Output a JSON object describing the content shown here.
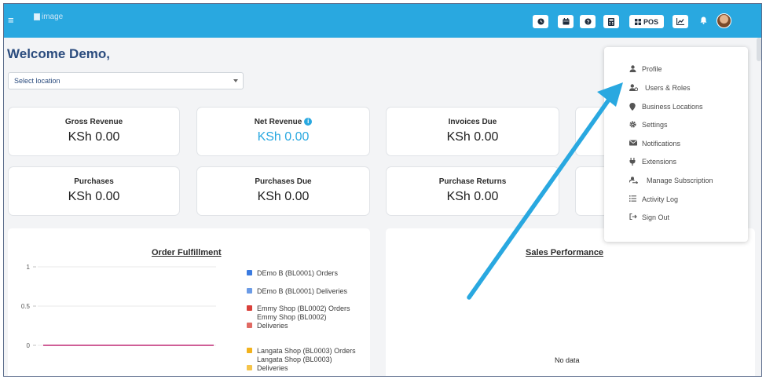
{
  "header": {
    "logo_alt": "image",
    "pos_label": "POS"
  },
  "welcome": "Welcome Demo,",
  "location_select": {
    "placeholder": "Select location"
  },
  "cards": [
    {
      "label": "Gross Revenue",
      "value": "KSh 0.00"
    },
    {
      "label": "Net Revenue",
      "value": "KSh 0.00",
      "accent": "#29a8e0"
    },
    {
      "label": "Invoices Due",
      "value": "KSh 0.00"
    },
    {
      "label": "Purchases",
      "value": "KSh 0.00"
    },
    {
      "label": "Purchases Due",
      "value": "KSh 0.00"
    },
    {
      "label": "Purchase Returns",
      "value": "KSh 0.00"
    }
  ],
  "order_fulfillment": {
    "title": "Order Fulfillment",
    "legend": [
      {
        "label": "DEmo B (BL0001) Orders",
        "color": "#3b7be0"
      },
      {
        "label": "DEmo B (BL0001) Deliveries",
        "color": "#6b9be6"
      },
      {
        "label": "Emmy Shop (BL0002) Orders",
        "color": "#d9403a"
      },
      {
        "label": "Emmy Shop (BL0002) Deliveries",
        "color": "#e06a63"
      },
      {
        "label": "Langata Shop (BL0003) Orders",
        "color": "#f2b21c"
      },
      {
        "label": "Langata Shop (BL0003) Deliveries",
        "color": "#f5c44a"
      }
    ]
  },
  "chart_data": {
    "type": "line",
    "title": "Order Fulfillment",
    "y_ticks": [
      "1",
      "0.5",
      "0"
    ],
    "ylim": [
      0,
      1
    ],
    "grid": true,
    "legend_position": "right",
    "series": [
      {
        "name": "DEmo B (BL0001) Orders",
        "values": [
          0,
          0
        ]
      },
      {
        "name": "Langata Shop (BL0003) Deliveries",
        "values": [
          0,
          0
        ]
      }
    ]
  },
  "sales_performance": {
    "title": "Sales Performance",
    "empty_text": "No data"
  },
  "user_menu": {
    "items": [
      {
        "label": "Profile",
        "icon": "user-icon"
      },
      {
        "label": "Users & Roles",
        "icon": "users-roles-icon"
      },
      {
        "label": "Business Locations",
        "icon": "map-pin-icon"
      },
      {
        "label": "Settings",
        "icon": "gear-icon"
      },
      {
        "label": "Notifications",
        "icon": "envelope-icon"
      },
      {
        "label": "Extensions",
        "icon": "plug-icon"
      },
      {
        "label": "Manage Subscription",
        "icon": "subscription-icon"
      },
      {
        "label": "Activity Log",
        "icon": "list-icon"
      },
      {
        "label": "Sign Out",
        "icon": "sign-out-icon"
      }
    ]
  },
  "colors": {
    "topbar": "#29a8e0",
    "title_blue": "#2b4c7e",
    "annotation_arrow": "#29a8e0"
  }
}
